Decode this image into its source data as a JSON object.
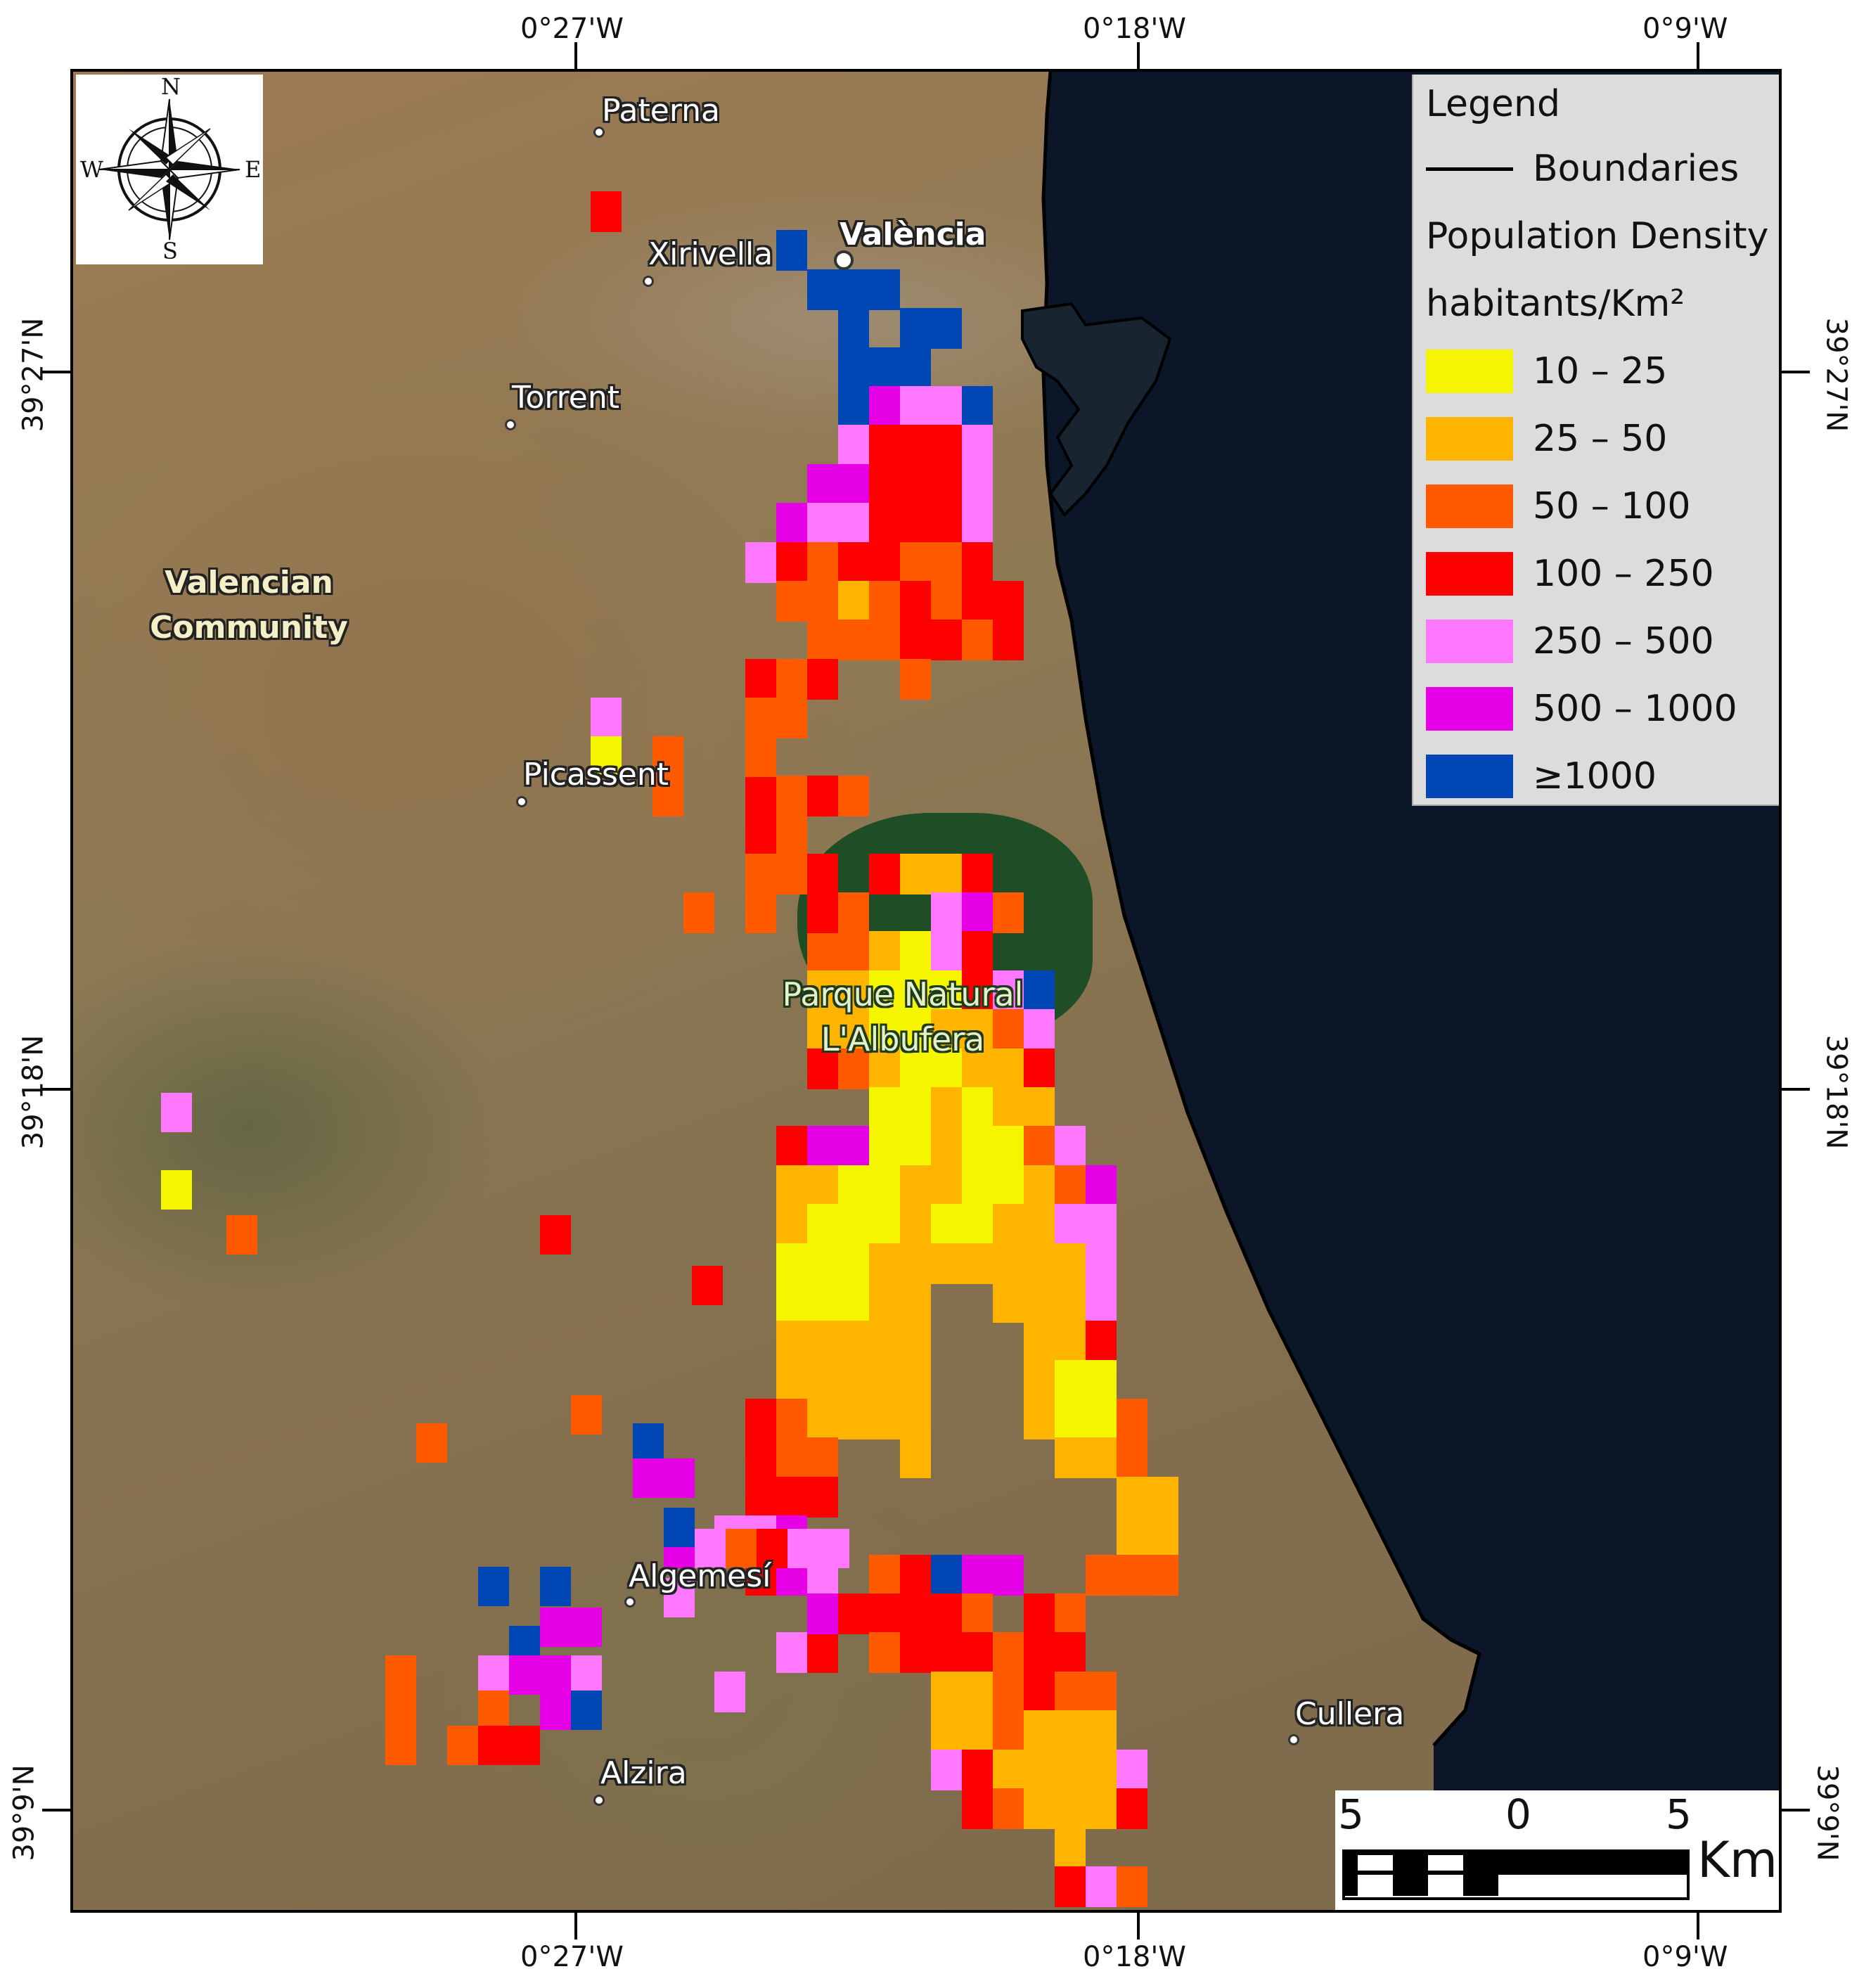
{
  "map": {
    "legend": {
      "title": "Legend",
      "boundaries_label": "Boundaries",
      "population_label": "Population Density",
      "units_label": "habitants/Km²",
      "classes": [
        {
          "label": "10 – 25",
          "color": "#f5f500"
        },
        {
          "label": "25 – 50",
          "color": "#ffb400"
        },
        {
          "label": "50 – 100",
          "color": "#ff5a00"
        },
        {
          "label": "100 – 250",
          "color": "#ff0000"
        },
        {
          "label": "250 – 500",
          "color": "#ff78ff"
        },
        {
          "label": "500 – 1000",
          "color": "#e600e6"
        },
        {
          "label": "≥1000",
          "color": "#0046b4"
        }
      ]
    },
    "compass": {
      "n": "N",
      "s": "S",
      "e": "E",
      "w": "W"
    },
    "axis_labels": {
      "top": [
        "0°27'W",
        "0°18'W",
        "0°9'W"
      ],
      "bottom": [
        "0°27'W",
        "0°18'W",
        "0°9'W"
      ],
      "left": [
        "39°27'N",
        "39°18'N",
        "39°9'N"
      ],
      "right": [
        "39°27'N",
        "39°18'N",
        "39°9'N"
      ]
    },
    "places": [
      {
        "name": "Paterna",
        "bold": false
      },
      {
        "name": "València",
        "bold": true
      },
      {
        "name": "Xirivella",
        "bold": false
      },
      {
        "name": "Torrent",
        "bold": false
      },
      {
        "name": "Picassent",
        "bold": false
      },
      {
        "name": "Algemesí",
        "bold": false
      },
      {
        "name": "Alzira",
        "bold": false
      },
      {
        "name": "Cullera",
        "bold": false
      }
    ],
    "region_label": [
      "Valencian",
      "Community"
    ],
    "park_label": [
      "Parque Natural",
      "L'Albufera"
    ],
    "scale_bar": {
      "labels": [
        "5",
        "0",
        "5"
      ],
      "unit": "Km"
    },
    "colors": {
      "sea": "#0b1628",
      "coast": "#000000"
    }
  }
}
